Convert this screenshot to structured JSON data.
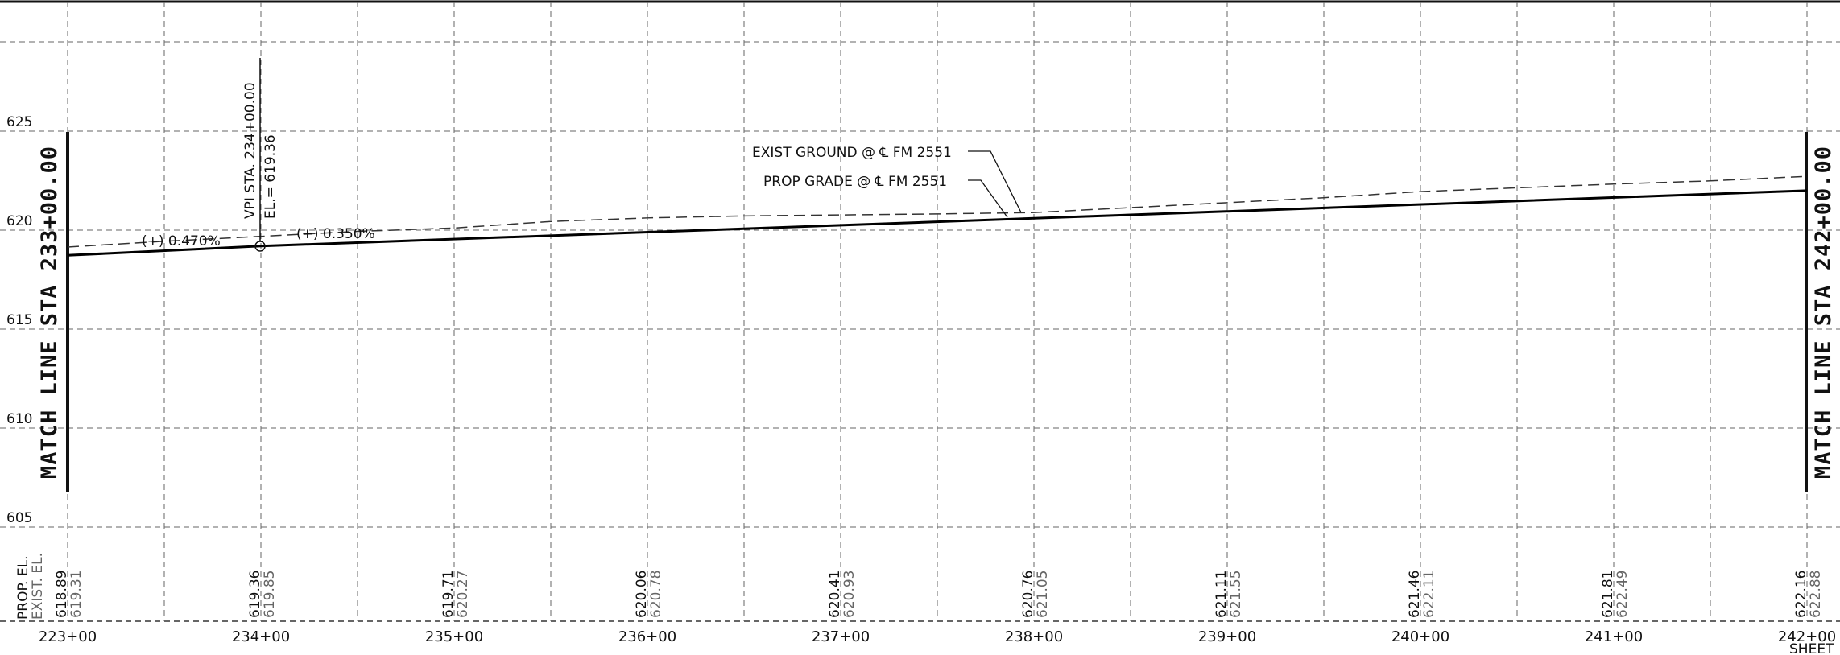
{
  "chart_data": {
    "type": "line",
    "xlabel": "",
    "ylabel": "",
    "xlim": [
      223,
      242.25
    ],
    "ylim": [
      605,
      625
    ],
    "stations": [
      223,
      224,
      225,
      226,
      227,
      228,
      229,
      230,
      231,
      232,
      233,
      234,
      235,
      236,
      237,
      238,
      239,
      240,
      241,
      242
    ],
    "station_labels": [
      "223+00",
      "234+00",
      "235+00",
      "236+00",
      "237+00",
      "238+00",
      "239+00",
      "240+00",
      "241+00",
      "242+00"
    ],
    "label_stations": [
      223,
      224,
      225,
      226,
      227,
      228,
      229,
      230,
      231,
      232
    ],
    "y_ticks": [
      625,
      620,
      615,
      610,
      605
    ],
    "series": [
      {
        "name": "PROP GRADE",
        "x": [
          223,
          224,
          232
        ],
        "y": [
          618.89,
          619.36,
          622.16
        ]
      },
      {
        "name": "EXIST GROUND",
        "x": [
          223,
          223.5,
          224,
          224.5,
          225,
          225.5,
          226,
          226.5,
          227,
          227.5,
          228,
          228.5,
          229,
          229.5,
          230,
          230.5,
          231,
          231.5,
          232
        ],
        "y": [
          619.31,
          619.6,
          619.85,
          620.1,
          620.27,
          620.6,
          620.78,
          620.88,
          620.93,
          620.98,
          621.05,
          621.3,
          621.55,
          621.8,
          622.11,
          622.3,
          622.49,
          622.65,
          622.88
        ]
      }
    ],
    "prop_el": [
      "618.89",
      "619.36",
      "619.71",
      "620.06",
      "620.41",
      "620.76",
      "621.11",
      "621.46",
      "621.81",
      "622.16"
    ],
    "exist_el": [
      "619.31",
      "619.85",
      "620.27",
      "620.78",
      "620.93",
      "621.05",
      "621.55",
      "622.11",
      "622.49",
      "622.88"
    ]
  },
  "labels": {
    "prop_el_header": "PROP. EL.",
    "exist_el_header": "EXIST. EL.",
    "match_left": "MATCH LINE STA 233+00.00",
    "match_right": "MATCH LINE STA 242+00.00",
    "vpi_sta": "VPI  STA. 234+00.00",
    "vpi_el": "EL.= 619.36",
    "grade_1": "(+) 0.470%",
    "grade_2": "(+) 0.350%",
    "exist_ground": "EXIST GROUND @ ℄ FM 2551",
    "prop_grade": "PROP GRADE @ ℄ FM 2551",
    "sheet": "SHEET"
  }
}
